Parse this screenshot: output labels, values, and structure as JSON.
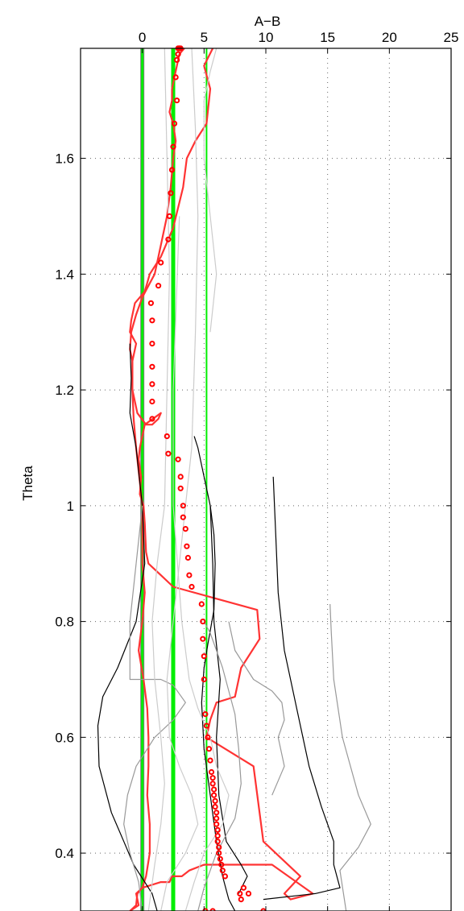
{
  "chart_data": {
    "type": "line",
    "title": "",
    "xlabel": "A−B",
    "ylabel": "Theta",
    "xlim": [
      -5,
      25
    ],
    "ylim": [
      0.3,
      1.79
    ],
    "x_ticks": [
      0,
      5,
      10,
      15,
      20,
      25
    ],
    "x_tick_labels": [
      "0",
      "5",
      "10",
      "15",
      "20",
      "25"
    ],
    "y_ticks": [
      0.4,
      0.6,
      0.8,
      1.0,
      1.2,
      1.4,
      1.6
    ],
    "y_tick_labels": [
      "0.4",
      "0.6",
      "0.8",
      "1",
      "1.2",
      "1.4",
      "1.6"
    ],
    "x_axis_position": "top",
    "grid": true,
    "vertical_lines": [
      {
        "x": 0,
        "color": "#808080",
        "width": "thick"
      },
      {
        "x": 0,
        "color": "#00ee00",
        "width": "medium"
      },
      {
        "x": 2.5,
        "color": "#00ee00",
        "width": "thick"
      },
      {
        "x": 5.2,
        "color": "#00ee00",
        "width": "thin"
      }
    ],
    "series": [
      {
        "style": "line",
        "color": "#ff3333",
        "x": [
          -1.0,
          -0.3,
          -0.5,
          0.0,
          1.5,
          2.2,
          2.4,
          2.8,
          3.2,
          3.8,
          5.0,
          10.5,
          13.8,
          12.0,
          11.5,
          12.8,
          9.8,
          9.0,
          5.2,
          5.5,
          6.0,
          7.5,
          8.0,
          9.5,
          9.3,
          2.5,
          1.5,
          0.5,
          0.3,
          0.2,
          0.1,
          -0.2,
          -0.1,
          -0.3,
          -0.2,
          0.2,
          1.5,
          1.3,
          0.8,
          0.3,
          -0.4,
          -0.8,
          -0.8,
          -0.5,
          -1.0,
          -0.9,
          -0.6,
          0.2,
          0.6,
          1.5,
          2.5,
          3.3,
          3.6,
          4.3,
          5.2,
          5.5,
          5.0,
          5.7
        ],
        "y": [
          0.3,
          0.31,
          0.33,
          0.34,
          0.35,
          0.35,
          0.36,
          0.36,
          0.36,
          0.37,
          0.38,
          0.38,
          0.33,
          0.32,
          0.33,
          0.36,
          0.42,
          0.55,
          0.6,
          0.63,
          0.66,
          0.67,
          0.72,
          0.77,
          0.82,
          0.86,
          0.88,
          0.9,
          0.92,
          0.97,
          1.0,
          1.02,
          1.05,
          1.08,
          1.1,
          1.14,
          1.16,
          1.15,
          1.14,
          1.14,
          1.16,
          1.2,
          1.25,
          1.28,
          1.3,
          1.32,
          1.35,
          1.37,
          1.4,
          1.43,
          1.48,
          1.55,
          1.6,
          1.63,
          1.66,
          1.72,
          1.76,
          1.79
        ]
      },
      {
        "style": "line",
        "color": "#ff3333",
        "x": [
          -1.0,
          -0.5,
          -0.4,
          0.0,
          0.3,
          0.6,
          0.6,
          0.4,
          0.5,
          0.5,
          0.4,
          0.1,
          -0.3,
          0.0,
          0.2,
          0.0,
          0.0,
          -0.5,
          -0.7,
          -0.8,
          -0.8,
          -1.0,
          -0.9,
          -0.5,
          0.0,
          0.5,
          1.0,
          1.5,
          2.0,
          2.3,
          2.5,
          2.7,
          2.5,
          2.2,
          2.4,
          2.4,
          2.6,
          2.8,
          3.0,
          3.4
        ],
        "y": [
          0.3,
          0.31,
          0.33,
          0.34,
          0.36,
          0.4,
          0.45,
          0.5,
          0.55,
          0.6,
          0.65,
          0.7,
          0.75,
          0.8,
          0.85,
          0.9,
          1.0,
          1.1,
          1.15,
          1.2,
          1.25,
          1.27,
          1.3,
          1.33,
          1.36,
          1.38,
          1.4,
          1.45,
          1.5,
          1.55,
          1.6,
          1.63,
          1.66,
          1.68,
          1.7,
          1.72,
          1.74,
          1.76,
          1.78,
          1.79
        ]
      },
      {
        "style": "line",
        "color": "#000000",
        "x": [
          1.2,
          0.8,
          -0.7,
          -1.5,
          -2.5,
          -3.5,
          -3.6,
          -3.2,
          -2.0,
          -0.5,
          0.2,
          0.0,
          -0.5,
          -1.0,
          -0.9,
          -1.0
        ],
        "y": [
          0.3,
          0.33,
          0.38,
          0.42,
          0.47,
          0.55,
          0.62,
          0.67,
          0.72,
          0.8,
          0.9,
          1.0,
          1.1,
          1.16,
          1.22,
          1.28
        ]
      },
      {
        "style": "line",
        "color": "#000000",
        "x": [
          7.5,
          7.0,
          6.5,
          6.0,
          5.5,
          5.0,
          4.8,
          5.0,
          5.3,
          5.8,
          5.9,
          5.8,
          5.5,
          5.0,
          4.5,
          4.2
        ],
        "y": [
          0.3,
          0.32,
          0.36,
          0.42,
          0.5,
          0.58,
          0.66,
          0.72,
          0.76,
          0.82,
          0.9,
          0.95,
          1.0,
          1.05,
          1.1,
          1.12
        ]
      },
      {
        "style": "line",
        "color": "#000000",
        "x": [
          7.8,
          8.5,
          8.0,
          6.8,
          6.2,
          6.0,
          6.3,
          5.8,
          5.7,
          5.5
        ],
        "y": [
          0.33,
          0.36,
          0.38,
          0.42,
          0.5,
          0.6,
          0.7,
          0.8,
          0.9,
          1.0
        ]
      },
      {
        "style": "line",
        "color": "#000000",
        "x": [
          9.8,
          14.0,
          16.0,
          15.5,
          15.5,
          14.5,
          13.5,
          12.5,
          11.5,
          11.0,
          10.8,
          10.6
        ],
        "y": [
          0.32,
          0.33,
          0.34,
          0.38,
          0.42,
          0.48,
          0.55,
          0.65,
          0.75,
          0.85,
          0.95,
          1.05
        ]
      },
      {
        "style": "line",
        "color": "#999999",
        "x": [
          16.5,
          16.0,
          17.5,
          18.5,
          17.5,
          16.2,
          15.5,
          15.3,
          15.2
        ],
        "y": [
          0.3,
          0.37,
          0.41,
          0.45,
          0.5,
          0.6,
          0.7,
          0.78,
          0.83
        ]
      },
      {
        "style": "line",
        "color": "#999999",
        "x": [
          0.0,
          -0.3,
          -1.0,
          -1.5,
          -1.2,
          -0.5,
          1.0,
          2.5,
          3.5,
          2.5,
          1.5,
          0.5,
          -1.0,
          -1.0,
          -0.5,
          0.0
        ],
        "y": [
          0.3,
          0.35,
          0.4,
          0.45,
          0.5,
          0.55,
          0.6,
          0.63,
          0.66,
          0.69,
          0.7,
          0.7,
          0.7,
          0.8,
          0.9,
          1.0
        ]
      },
      {
        "style": "line",
        "color": "#999999",
        "x": [
          4.5,
          5.0,
          6.0,
          7.5,
          8.0,
          7.8,
          7.5,
          7.0,
          6.5,
          6.0,
          5.5,
          5.0
        ],
        "y": [
          0.3,
          0.34,
          0.4,
          0.46,
          0.52,
          0.58,
          0.64,
          0.68,
          0.72,
          0.75,
          0.78,
          0.8
        ]
      },
      {
        "style": "line",
        "color": "#999999",
        "x": [
          10.5,
          11.5,
          11.0,
          11.5,
          11.3,
          10.5,
          9.0,
          7.5,
          7.0
        ],
        "y": [
          0.5,
          0.55,
          0.6,
          0.63,
          0.66,
          0.68,
          0.7,
          0.75,
          0.8
        ]
      },
      {
        "style": "line",
        "color": "#cccccc",
        "x": [
          1.5,
          2.0,
          3.5,
          4.5,
          4.0,
          3.0,
          2.2,
          2.0,
          2.5,
          3.0,
          3.5,
          4.0,
          4.3,
          4.5,
          4.3,
          4.0
        ],
        "y": [
          0.3,
          0.35,
          0.4,
          0.45,
          0.5,
          0.55,
          0.6,
          0.7,
          0.8,
          0.9,
          1.0,
          1.1,
          1.3,
          1.5,
          1.65,
          1.79
        ]
      },
      {
        "style": "line",
        "color": "#cccccc",
        "x": [
          3.5,
          4.2,
          5.0,
          6.5,
          7.0,
          6.0,
          5.5,
          4.5,
          3.8,
          3.2,
          2.5,
          2.5,
          3.0
        ],
        "y": [
          0.3,
          0.35,
          0.4,
          0.45,
          0.5,
          0.55,
          0.6,
          0.65,
          0.7,
          0.8,
          1.0,
          1.2,
          1.5
        ]
      },
      {
        "style": "line",
        "color": "#cccccc",
        "x": [
          0.5,
          1.0,
          1.5,
          1.8,
          1.5,
          1.0,
          0.8,
          1.2,
          1.8,
          2.0,
          2.2,
          2.0,
          1.8
        ],
        "y": [
          0.3,
          0.38,
          0.45,
          0.52,
          0.6,
          0.7,
          0.8,
          0.9,
          1.0,
          1.2,
          1.4,
          1.6,
          1.79
        ]
      },
      {
        "style": "line",
        "color": "#cccccc",
        "x": [
          5.5,
          6.0,
          5.5,
          5.0,
          5.0,
          5.5,
          6.0
        ],
        "y": [
          1.3,
          1.4,
          1.5,
          1.6,
          1.7,
          1.75,
          1.79
        ]
      },
      {
        "style": "markers",
        "color": "#ff0000",
        "x": [
          9.8,
          5.7,
          5.1,
          8.6,
          7.9,
          8.0,
          8.2,
          6.7,
          6.5,
          6.4,
          6.3,
          6.2,
          6.2,
          6.1,
          6.1,
          6.1,
          6.0,
          6.0,
          6.0,
          5.9,
          5.9,
          5.8,
          5.8,
          5.7,
          5.7,
          5.6,
          5.5,
          5.4,
          5.3,
          5.2,
          5.1,
          5.0,
          5.0,
          4.9,
          4.9,
          4.8,
          4.0,
          3.8,
          3.7,
          3.6,
          3.5,
          3.3,
          3.3,
          3.1,
          3.1,
          2.9,
          2.1,
          2.0,
          0.8,
          0.8,
          0.8,
          0.8,
          0.8,
          0.8,
          0.7,
          1.3,
          1.5,
          2.1,
          2.2,
          2.3,
          2.4,
          2.5,
          2.6,
          2.8,
          2.7,
          2.8,
          2.9,
          2.9,
          3.0,
          3.0,
          3.1
        ],
        "y": [
          0.3,
          0.3,
          0.3,
          0.33,
          0.33,
          0.32,
          0.34,
          0.36,
          0.37,
          0.38,
          0.39,
          0.4,
          0.41,
          0.42,
          0.43,
          0.44,
          0.45,
          0.46,
          0.47,
          0.48,
          0.49,
          0.5,
          0.51,
          0.52,
          0.53,
          0.54,
          0.56,
          0.58,
          0.6,
          0.62,
          0.64,
          0.7,
          0.74,
          0.77,
          0.8,
          0.83,
          0.86,
          0.88,
          0.91,
          0.93,
          0.96,
          0.98,
          1.0,
          1.03,
          1.05,
          1.08,
          1.09,
          1.12,
          1.15,
          1.18,
          1.21,
          1.24,
          1.28,
          1.32,
          1.35,
          1.38,
          1.42,
          1.46,
          1.5,
          1.54,
          1.58,
          1.62,
          1.66,
          1.7,
          1.74,
          1.77,
          1.78,
          1.79,
          1.79,
          1.79,
          1.79
        ]
      }
    ]
  }
}
